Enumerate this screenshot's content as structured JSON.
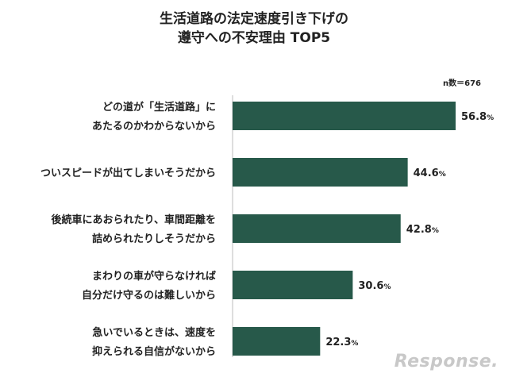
{
  "chart_data": {
    "type": "bar",
    "orientation": "horizontal",
    "title_lines": [
      "生活道路の法定速度引き下げの",
      "遵守への不安理由 TOP5"
    ],
    "sample_size": "n数＝676",
    "unit": "%",
    "bar_color": "#27594a",
    "xlim": [
      0,
      60
    ],
    "categories": [
      [
        "どの道が「生活道路」に",
        "あたるのかわからないから"
      ],
      [
        "ついスピードが出てしまいそうだから"
      ],
      [
        "後続車にあおられたり、車間距離を",
        "詰められたりしそうだから"
      ],
      [
        "まわりの車が守らなければ",
        "自分だけ守るのは難しいから"
      ],
      [
        "急いでいるときは、速度を",
        "抑えられる自信がないから"
      ]
    ],
    "values": [
      56.8,
      44.6,
      42.8,
      30.6,
      22.3
    ],
    "value_labels": [
      "56.8",
      "44.6",
      "42.8",
      "30.6",
      "22.3"
    ]
  },
  "watermark": "Response."
}
